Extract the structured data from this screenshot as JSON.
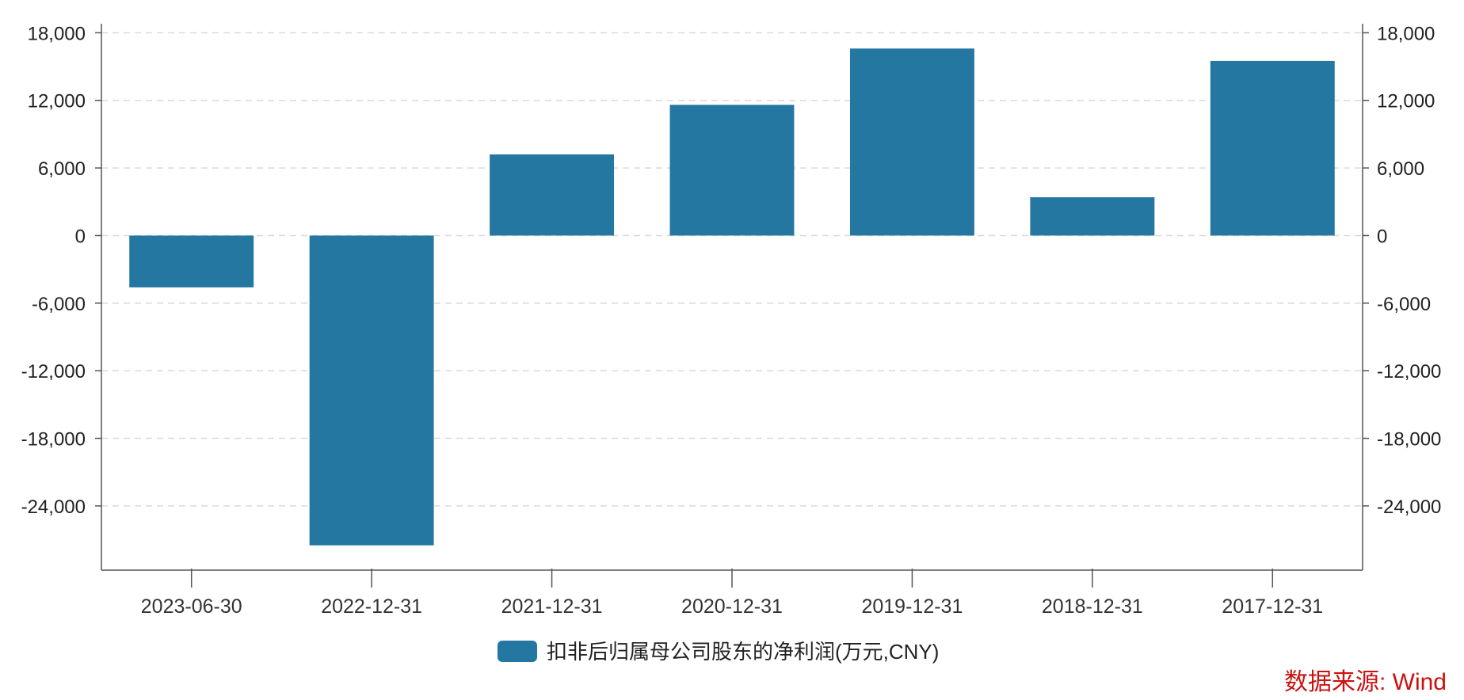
{
  "chart_data": {
    "type": "bar",
    "categories": [
      "2023-06-30",
      "2022-12-31",
      "2021-12-31",
      "2020-12-31",
      "2019-12-31",
      "2018-12-31",
      "2017-12-31"
    ],
    "series": [
      {
        "name": "扣非后归属母公司股东的净利润(万元,CNY)",
        "values": [
          -4600,
          -27500,
          7200,
          11600,
          16600,
          3400,
          15500
        ]
      }
    ],
    "ylim": [
      -29700,
      18800
    ],
    "yticks": [
      18000,
      12000,
      6000,
      0,
      -6000,
      -12000,
      -18000,
      -24000
    ],
    "ytick_labels": [
      "18,000",
      "12,000",
      "6,000",
      "0",
      "-6,000",
      "-12,000",
      "-18,000",
      "-24,000"
    ],
    "grid": true,
    "dual_y_axis": true,
    "legend": "bottom-center",
    "colors": {
      "bar": "#2477a1",
      "grid": "#d9d9d9",
      "axis": "#555555"
    }
  },
  "source": "数据来源: Wind"
}
